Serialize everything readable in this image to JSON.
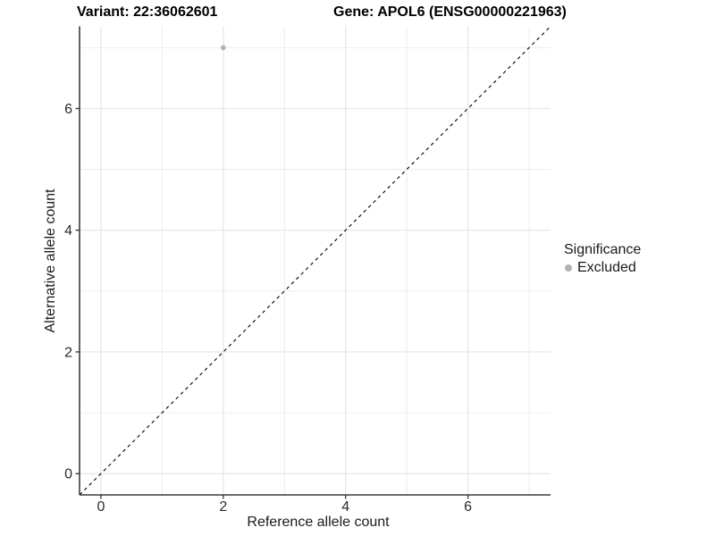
{
  "figure": {
    "title_left": "Variant: 22:36062601",
    "title_right": "Gene: APOL6 (ENSG00000221963)"
  },
  "chart_data": {
    "type": "scatter",
    "title": "Variant: 22:36062601   Gene: APOL6 (ENSG00000221963)",
    "xlabel": "Reference allele count",
    "ylabel": "Alternative allele count",
    "xlim": [
      -0.35,
      7.35
    ],
    "ylim": [
      -0.35,
      7.35
    ],
    "x_ticks": [
      0,
      2,
      4,
      6
    ],
    "y_ticks": [
      0,
      2,
      4,
      6
    ],
    "x_minor_ticks": [
      1,
      3,
      5,
      7
    ],
    "y_minor_ticks": [
      1,
      3,
      5,
      7
    ],
    "grid": "on",
    "series": [
      {
        "name": "Excluded",
        "color": "#b3b3b3",
        "points": [
          {
            "x": 2,
            "y": 7
          }
        ]
      }
    ],
    "reference_line": {
      "kind": "identity y=x",
      "from": [
        -0.35,
        -0.35
      ],
      "to": [
        7.35,
        7.35
      ],
      "style": "dashed",
      "color": "#000000"
    },
    "legend": {
      "title": "Significance",
      "position": "right",
      "entries": [
        {
          "label": "Excluded",
          "color": "#b3b3b3"
        }
      ]
    }
  },
  "colors": {
    "background": "#ffffff",
    "grid_major": "#e4e4e4",
    "grid_minor": "#ededed",
    "axis_line": "#3c3c3c",
    "tick_mark": "#333333",
    "tick_text": "#2b2b2b",
    "title_text": "#000000",
    "point": "#b3b3b3"
  }
}
